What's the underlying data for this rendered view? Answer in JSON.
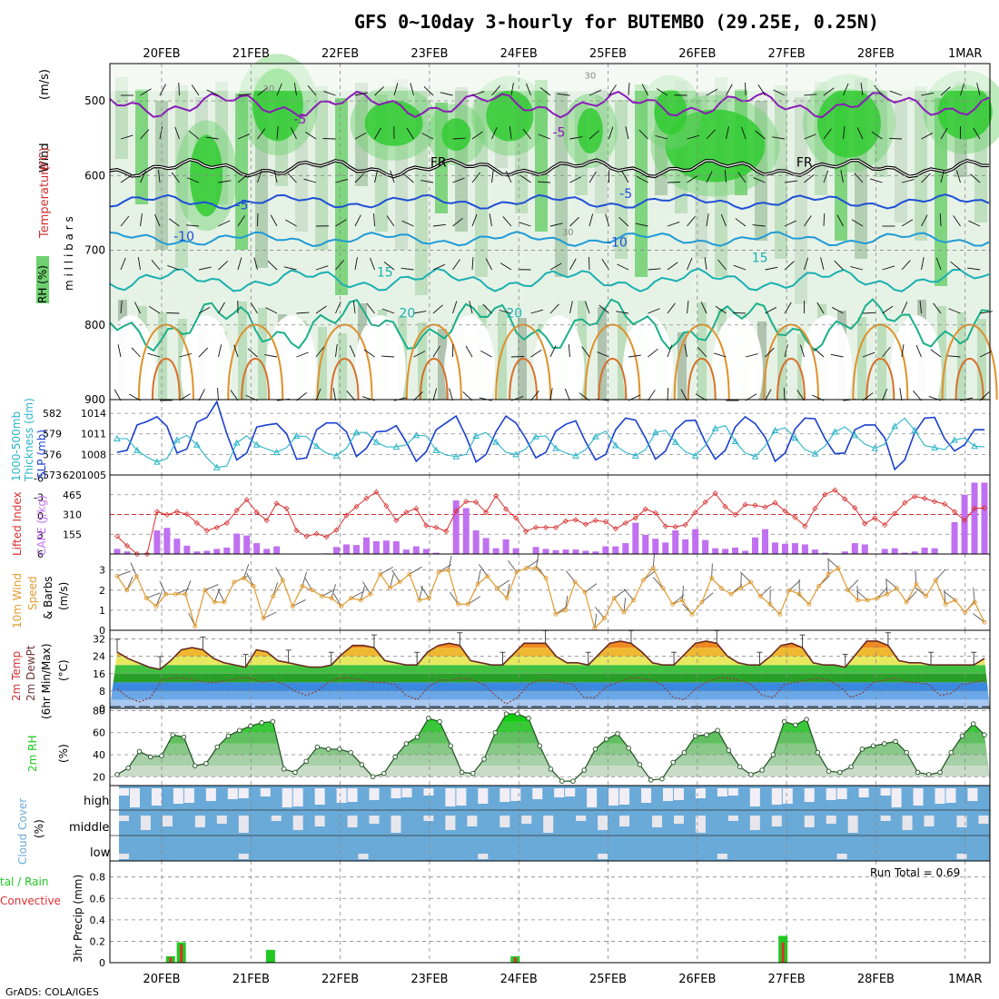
{
  "title": "GFS 0~10day 3-hourly for BUTEMBO (29.25E, 0.25N)",
  "footer": "GrADS: COLA/IGES",
  "dates": [
    "20FEB",
    "21FEB",
    "22FEB",
    "23FEB",
    "24FEB",
    "25FEB",
    "26FEB",
    "27FEB",
    "28FEB",
    "1MAR"
  ],
  "colors": {
    "rh_dark": "#00c800",
    "rh_mid": "#6fd06f",
    "rh_light": "#b7dcb7",
    "rh_pale": "#e6f2e6",
    "temp_purple": "#8a1ab8",
    "temp_blue": "#1f4fd6",
    "temp_teal": "#19b0b0",
    "temp_orange": "#e0902a",
    "slp_blue": "#1a3fd0",
    "thick_cyan": "#2ab4c8",
    "li_red": "#d83030",
    "cape_purple": "#c070f0",
    "wind_orange": "#e09a30",
    "cloud_blue": "#6aaad8",
    "precip_green": "#22c822",
    "precip_red": "#e03030"
  },
  "chart_data": [
    {
      "panel": "upper-air",
      "type": "heatmap",
      "legend": [
        "Wind (m/s)",
        "Temperature (°C)",
        "RH (%)"
      ],
      "ylabel": "m i l l i b a r s",
      "yticks": [
        500,
        600,
        700,
        800,
        900
      ],
      "ylim": [
        450,
        900
      ],
      "contour_labels": [
        {
          "label": "-5",
          "day": 1.55,
          "p": 530
        },
        {
          "label": "-5",
          "day": 4.45,
          "p": 548
        },
        {
          "label": "FR",
          "day": 3.1,
          "p": 588
        },
        {
          "label": "FR",
          "day": 7.2,
          "p": 588
        },
        {
          "label": "-5",
          "day": 0.9,
          "p": 645
        },
        {
          "label": "-5",
          "day": 5.2,
          "p": 630
        },
        {
          "label": "-10",
          "day": 0.25,
          "p": 687
        },
        {
          "label": "-10",
          "day": 5.1,
          "p": 695
        },
        {
          "label": "15",
          "day": 2.5,
          "p": 735
        },
        {
          "label": "15",
          "day": 6.7,
          "p": 716
        },
        {
          "label": "20",
          "day": 2.75,
          "p": 790
        },
        {
          "label": "20",
          "day": 3.95,
          "p": 790
        },
        {
          "label": "30",
          "day": 1.2,
          "p": 488
        },
        {
          "label": "30",
          "day": 4.8,
          "p": 470
        },
        {
          "label": "30",
          "day": 4.55,
          "p": 680
        }
      ],
      "isotherm_note": "Temperature lines drawn purple (-5), black (FR), blue (-5/-10), teal (15/20), orange (warm surface)"
    },
    {
      "panel": "thickness-slp",
      "type": "line",
      "ylabel_left": "1000-500mb Thickness (dm)",
      "ylabel_right": "SLP (mb)",
      "yticks_left": [
        573,
        576,
        579,
        582
      ],
      "yticks_right": [
        1005,
        1008,
        1011,
        1014
      ],
      "ylim_left": [
        573,
        584
      ],
      "ylim_right": [
        1005,
        1016
      ],
      "series": [
        {
          "name": "SLP",
          "values": [
            1008.3,
            1008.6,
            1012.3,
            1012.8,
            1013.5,
            1012.1,
            1008.2,
            1008.8,
            1012.7,
            1013.4,
            1015.7,
            1011.0,
            1007.2,
            1008.2,
            1012.0,
            1012.3,
            1012.5,
            1011.0,
            1007.3,
            1007.5,
            1011.6,
            1012.6,
            1012.6,
            1011.3,
            1007.7,
            1008.9,
            1011.3,
            1011.4,
            1012.2,
            1009.8,
            1007.0,
            1008.4,
            1011.6,
            1012.6,
            1013.6,
            1010.6,
            1006.9,
            1008.0,
            1011.3,
            1013.6,
            1012.6,
            1010.3,
            1007.5,
            1008.3,
            1011.4,
            1012.4,
            1012.9,
            1009.8,
            1007.2,
            1008.0,
            1011.6,
            1013.3,
            1013.0,
            1010.4,
            1007.3,
            1008.5,
            1011.6,
            1012.9,
            1013.0,
            1009.8,
            1007.3,
            1008.6,
            1012.0,
            1013.5,
            1012.5,
            1010.5,
            1007.0,
            1008.2,
            1011.7,
            1013.3,
            1013.2,
            1010.3,
            1008.1,
            1008.2,
            1011.6,
            1012.3,
            1012.3,
            1010.4,
            1005.8,
            1007.2,
            1011.2,
            1013.3,
            1013.4,
            1010.3,
            1008.5,
            1009.4,
            1011.6,
            1011.6
          ]
        },
        {
          "name": "1000-500mb Thickness",
          "values": [
            578.3,
            578.3,
            576.6,
            575.6,
            574.9,
            575.4,
            578.1,
            578.8,
            577.4,
            575.5,
            574.1,
            574.3,
            577.7,
            578.7,
            577.4,
            576.8,
            576.3,
            577.0,
            578.7,
            578.6,
            577.2,
            576.2,
            575.8,
            576.9,
            579.2,
            579.2,
            577.8,
            577.1,
            577.1,
            577.4,
            578.8,
            578.7,
            576.6,
            575.9,
            575.7,
            576.0,
            578.7,
            579.2,
            577.8,
            576.3,
            576.0,
            576.8,
            578.6,
            578.7,
            576.9,
            576.2,
            575.8,
            576.7,
            578.6,
            579.4,
            577.3,
            576.3,
            575.8,
            576.7,
            579.2,
            579.5,
            577.8,
            576.4,
            575.8,
            577.3,
            579.8,
            580.2,
            577.9,
            576.2,
            575.7,
            577.2,
            579.5,
            579.9,
            578.4,
            576.7,
            576.1,
            577.2,
            579.3,
            580.0,
            578.8,
            577.5,
            576.9,
            577.5,
            580.1,
            581.3,
            579.5,
            577.3,
            577.0,
            576.7,
            578.1,
            578.4,
            577.2,
            577.1
          ]
        }
      ]
    },
    {
      "panel": "lifted-index-cape",
      "type": "bar",
      "ylabel_left": "Lifted Index",
      "ylabel_right": "CAPE (J/kg)",
      "yticks_left": [
        6,
        3,
        0,
        -3,
        -6
      ],
      "yticks_right": [
        155,
        310,
        465,
        620
      ],
      "ylim_right": [
        0,
        620
      ],
      "series": [
        {
          "name": "CAPE",
          "values": [
            40,
            20,
            0,
            5,
            185,
            205,
            120,
            65,
            20,
            25,
            40,
            50,
            160,
            145,
            85,
            40,
            60,
            0,
            0,
            0,
            0,
            5,
            55,
            75,
            70,
            130,
            100,
            105,
            100,
            35,
            60,
            40,
            10,
            0,
            420,
            360,
            185,
            125,
            45,
            115,
            45,
            0,
            55,
            40,
            30,
            35,
            35,
            25,
            20,
            60,
            60,
            85,
            245,
            150,
            120,
            90,
            185,
            115,
            195,
            110,
            45,
            40,
            50,
            25,
            130,
            195,
            90,
            80,
            85,
            75,
            35,
            10,
            0,
            20,
            85,
            75,
            0,
            40,
            45,
            10,
            20,
            50,
            45,
            0,
            250,
            465,
            560,
            560
          ]
        },
        {
          "name": "Lifted Index",
          "values": [
            3.2,
            4.7,
            6.0,
            6.0,
            -0.7,
            -0.2,
            -0.7,
            -0.3,
            1.1,
            2.3,
            1.8,
            1.1,
            -0.9,
            -2.6,
            -0.6,
            0.7,
            -2.0,
            -1.2,
            2.3,
            3.2,
            2.8,
            3.3,
            2.2,
            -0.1,
            -1.5,
            -2.8,
            -3.8,
            -1.6,
            0.7,
            -0.6,
            -1.2,
            1.5,
            1.8,
            2.4,
            -0.8,
            -2.3,
            -2.2,
            -0.6,
            -3.2,
            -1.1,
            0.3,
            2.4,
            1.8,
            1.8,
            1.8,
            0.8,
            0.6,
            1.3,
            0.7,
            0.9,
            2.0,
            1.1,
            0.3,
            -1.1,
            -0.5,
            1.6,
            1.7,
            1.4,
            -0.6,
            -2.2,
            -3.6,
            -1.5,
            -0.2,
            -1.8,
            -1.7,
            -1.4,
            -2.1,
            -0.8,
            0.2,
            1.6,
            -1.2,
            -3.4,
            -4.1,
            -2.7,
            -1.3,
            1.2,
            0.3,
            1.4,
            -0.4,
            -2.1,
            -3.1,
            -2.8,
            -2.3,
            -1.9,
            -0.7,
            0.7,
            -1.2,
            -1.3
          ]
        }
      ]
    },
    {
      "panel": "10m-wind",
      "type": "line",
      "ylabel": "10m Wind Speed & Barbs (m/s)",
      "yticks": [
        0,
        1,
        2,
        3
      ],
      "ylim": [
        0,
        3.8
      ],
      "series": [
        {
          "name": "10m Wind Speed",
          "values": [
            2.7,
            2.0,
            2.7,
            1.6,
            1.2,
            1.8,
            1.8,
            1.8,
            0.2,
            2.0,
            1.4,
            1.4,
            2.4,
            2.6,
            2.2,
            0.6,
            1.7,
            2.5,
            1.2,
            2.2,
            2.0,
            1.7,
            1.6,
            1.2,
            1.6,
            1.5,
            1.8,
            2.8,
            2.1,
            2.4,
            2.8,
            1.5,
            1.6,
            2.9,
            3.0,
            1.3,
            1.3,
            2.3,
            2.7,
            2.1,
            1.6,
            2.9,
            3.1,
            3.1,
            2.6,
            0.8,
            1.0,
            2.4,
            1.9,
            0.1,
            0.6,
            1.6,
            0.9,
            1.5,
            2.5,
            3.1,
            2.1,
            1.3,
            1.5,
            0.8,
            1.4,
            2.6,
            2.1,
            1.8,
            2.1,
            2.4,
            1.7,
            1.3,
            0.8,
            2.0,
            1.8,
            1.3,
            2.2,
            2.8,
            3.1,
            2.0,
            1.5,
            1.5,
            1.6,
            1.8,
            2.1,
            1.4,
            2.3,
            1.7,
            2.5,
            1.3,
            1.5,
            0.9,
            1.4,
            0.4
          ]
        }
      ]
    },
    {
      "panel": "2m-temp",
      "type": "area",
      "ylabel": "2m Temp 2m DewPt (6hr Min/Max) (°C)",
      "yticks": [
        0,
        8,
        16,
        24,
        32
      ],
      "ylim": [
        0,
        36
      ],
      "series": [
        {
          "name": "2m Temp",
          "values": [
            26,
            23,
            21,
            19,
            18,
            22,
            27,
            28,
            27,
            23,
            21,
            20,
            19,
            27,
            26,
            22,
            21,
            20,
            19,
            19,
            20,
            25,
            29,
            29,
            28,
            22,
            21,
            20,
            20,
            26,
            29,
            30,
            29,
            22,
            21,
            20,
            20,
            25,
            30,
            30,
            30,
            24,
            21,
            21,
            20,
            25,
            30,
            31,
            30,
            26,
            21,
            20,
            20,
            25,
            30,
            31,
            30,
            24,
            21,
            20,
            20,
            24,
            29,
            30,
            28,
            21,
            20,
            20,
            19,
            25,
            31,
            31,
            29,
            22,
            21,
            21,
            20,
            20,
            20,
            20,
            20,
            23
          ]
        },
        {
          "name": "2m DewPt",
          "values": [
            9,
            5,
            3,
            5,
            13,
            14,
            14,
            13,
            12,
            12,
            13,
            14,
            14,
            12,
            13,
            11,
            8,
            6,
            8,
            12,
            14,
            14,
            13,
            12,
            12,
            11,
            6,
            4,
            10,
            13,
            13,
            14,
            13,
            11,
            6,
            2,
            5,
            11,
            13,
            13,
            12,
            11,
            5,
            5,
            10,
            12,
            14,
            14,
            13,
            11,
            5,
            4,
            9,
            12,
            14,
            14,
            13,
            11,
            6,
            5,
            11,
            12,
            13,
            14,
            13,
            10,
            5,
            7,
            12,
            13,
            14,
            12,
            12,
            11,
            6,
            7,
            11,
            12,
            13
          ]
        }
      ]
    },
    {
      "panel": "2m-rh",
      "type": "area",
      "ylabel": "2m RH (%)",
      "yticks": [
        20,
        40,
        60,
        80
      ],
      "ylim": [
        12,
        82
      ],
      "series": [
        {
          "name": "2m RH",
          "values": [
            22,
            28,
            43,
            38,
            39,
            58,
            56,
            30,
            32,
            47,
            57,
            62,
            66,
            69,
            70,
            27,
            24,
            34,
            47,
            45,
            45,
            42,
            31,
            20,
            23,
            38,
            50,
            56,
            73,
            70,
            48,
            24,
            23,
            36,
            60,
            77,
            77,
            73,
            48,
            27,
            16,
            16,
            26,
            45,
            54,
            59,
            46,
            31,
            17,
            18,
            33,
            42,
            57,
            58,
            62,
            44,
            29,
            22,
            26,
            40,
            70,
            67,
            72,
            42,
            25,
            24,
            29,
            45,
            48,
            50,
            52,
            42,
            24,
            22,
            24,
            42,
            57,
            68,
            58
          ]
        }
      ]
    },
    {
      "panel": "cloud-cover",
      "type": "heatmap",
      "ylabel": "Cloud Cover (%)",
      "rows": [
        "high",
        "middle",
        "low"
      ]
    },
    {
      "panel": "precip",
      "type": "bar",
      "ylabel": "3hr Precip (mm)",
      "legend": [
        "Total / Rain",
        "Convective"
      ],
      "yticks": [
        0,
        0.2,
        0.4,
        0.6,
        0.8
      ],
      "ylim": [
        0,
        0.95
      ],
      "annotation": "Run Total = 0.69",
      "bars": [
        {
          "day": 0.1,
          "total": 0.06,
          "convective": 0.05
        },
        {
          "day": 0.22,
          "total": 0.19,
          "convective": 0.17
        },
        {
          "day": 1.22,
          "total": 0.12,
          "convective": 0.0
        },
        {
          "day": 3.96,
          "total": 0.06,
          "convective": 0.05
        },
        {
          "day": 6.96,
          "total": 0.25,
          "convective": 0.19
        }
      ]
    }
  ],
  "labels": {
    "wind": "Wind",
    "wind_units": "(m/s)",
    "temperature": "Temperature",
    "temp_units": "(°C)",
    "rh": "RH (%)",
    "millibars": "m i l l i b a r s",
    "thickness_a": "1000-500mb",
    "thickness_b": "Thickness (dm)",
    "slp": "SLP (mb)",
    "li": "Lifted Index",
    "cape": "CAPE (J/kg)",
    "wind10_a": "10m Wind",
    "wind10_b": "Speed",
    "wind10_c": "& Barbs",
    "wind10_d": "(m/s)",
    "t2_a": "2m Temp",
    "t2_b": "2m DewPt",
    "t2_c": "(6hr Min/Max)",
    "t2_d": "(°C)",
    "rh2": "2m RH",
    "rh2_units": "(%)",
    "cloud": "Cloud Cover",
    "cloud_units": "(%)",
    "cloud_high": "high",
    "cloud_middle": "middle",
    "cloud_low": "low",
    "precip_a": "tal / Rain",
    "precip_b": "Convective",
    "precip_units": "3hr Precip (mm)",
    "run_total": "Run Total = 0.69"
  }
}
